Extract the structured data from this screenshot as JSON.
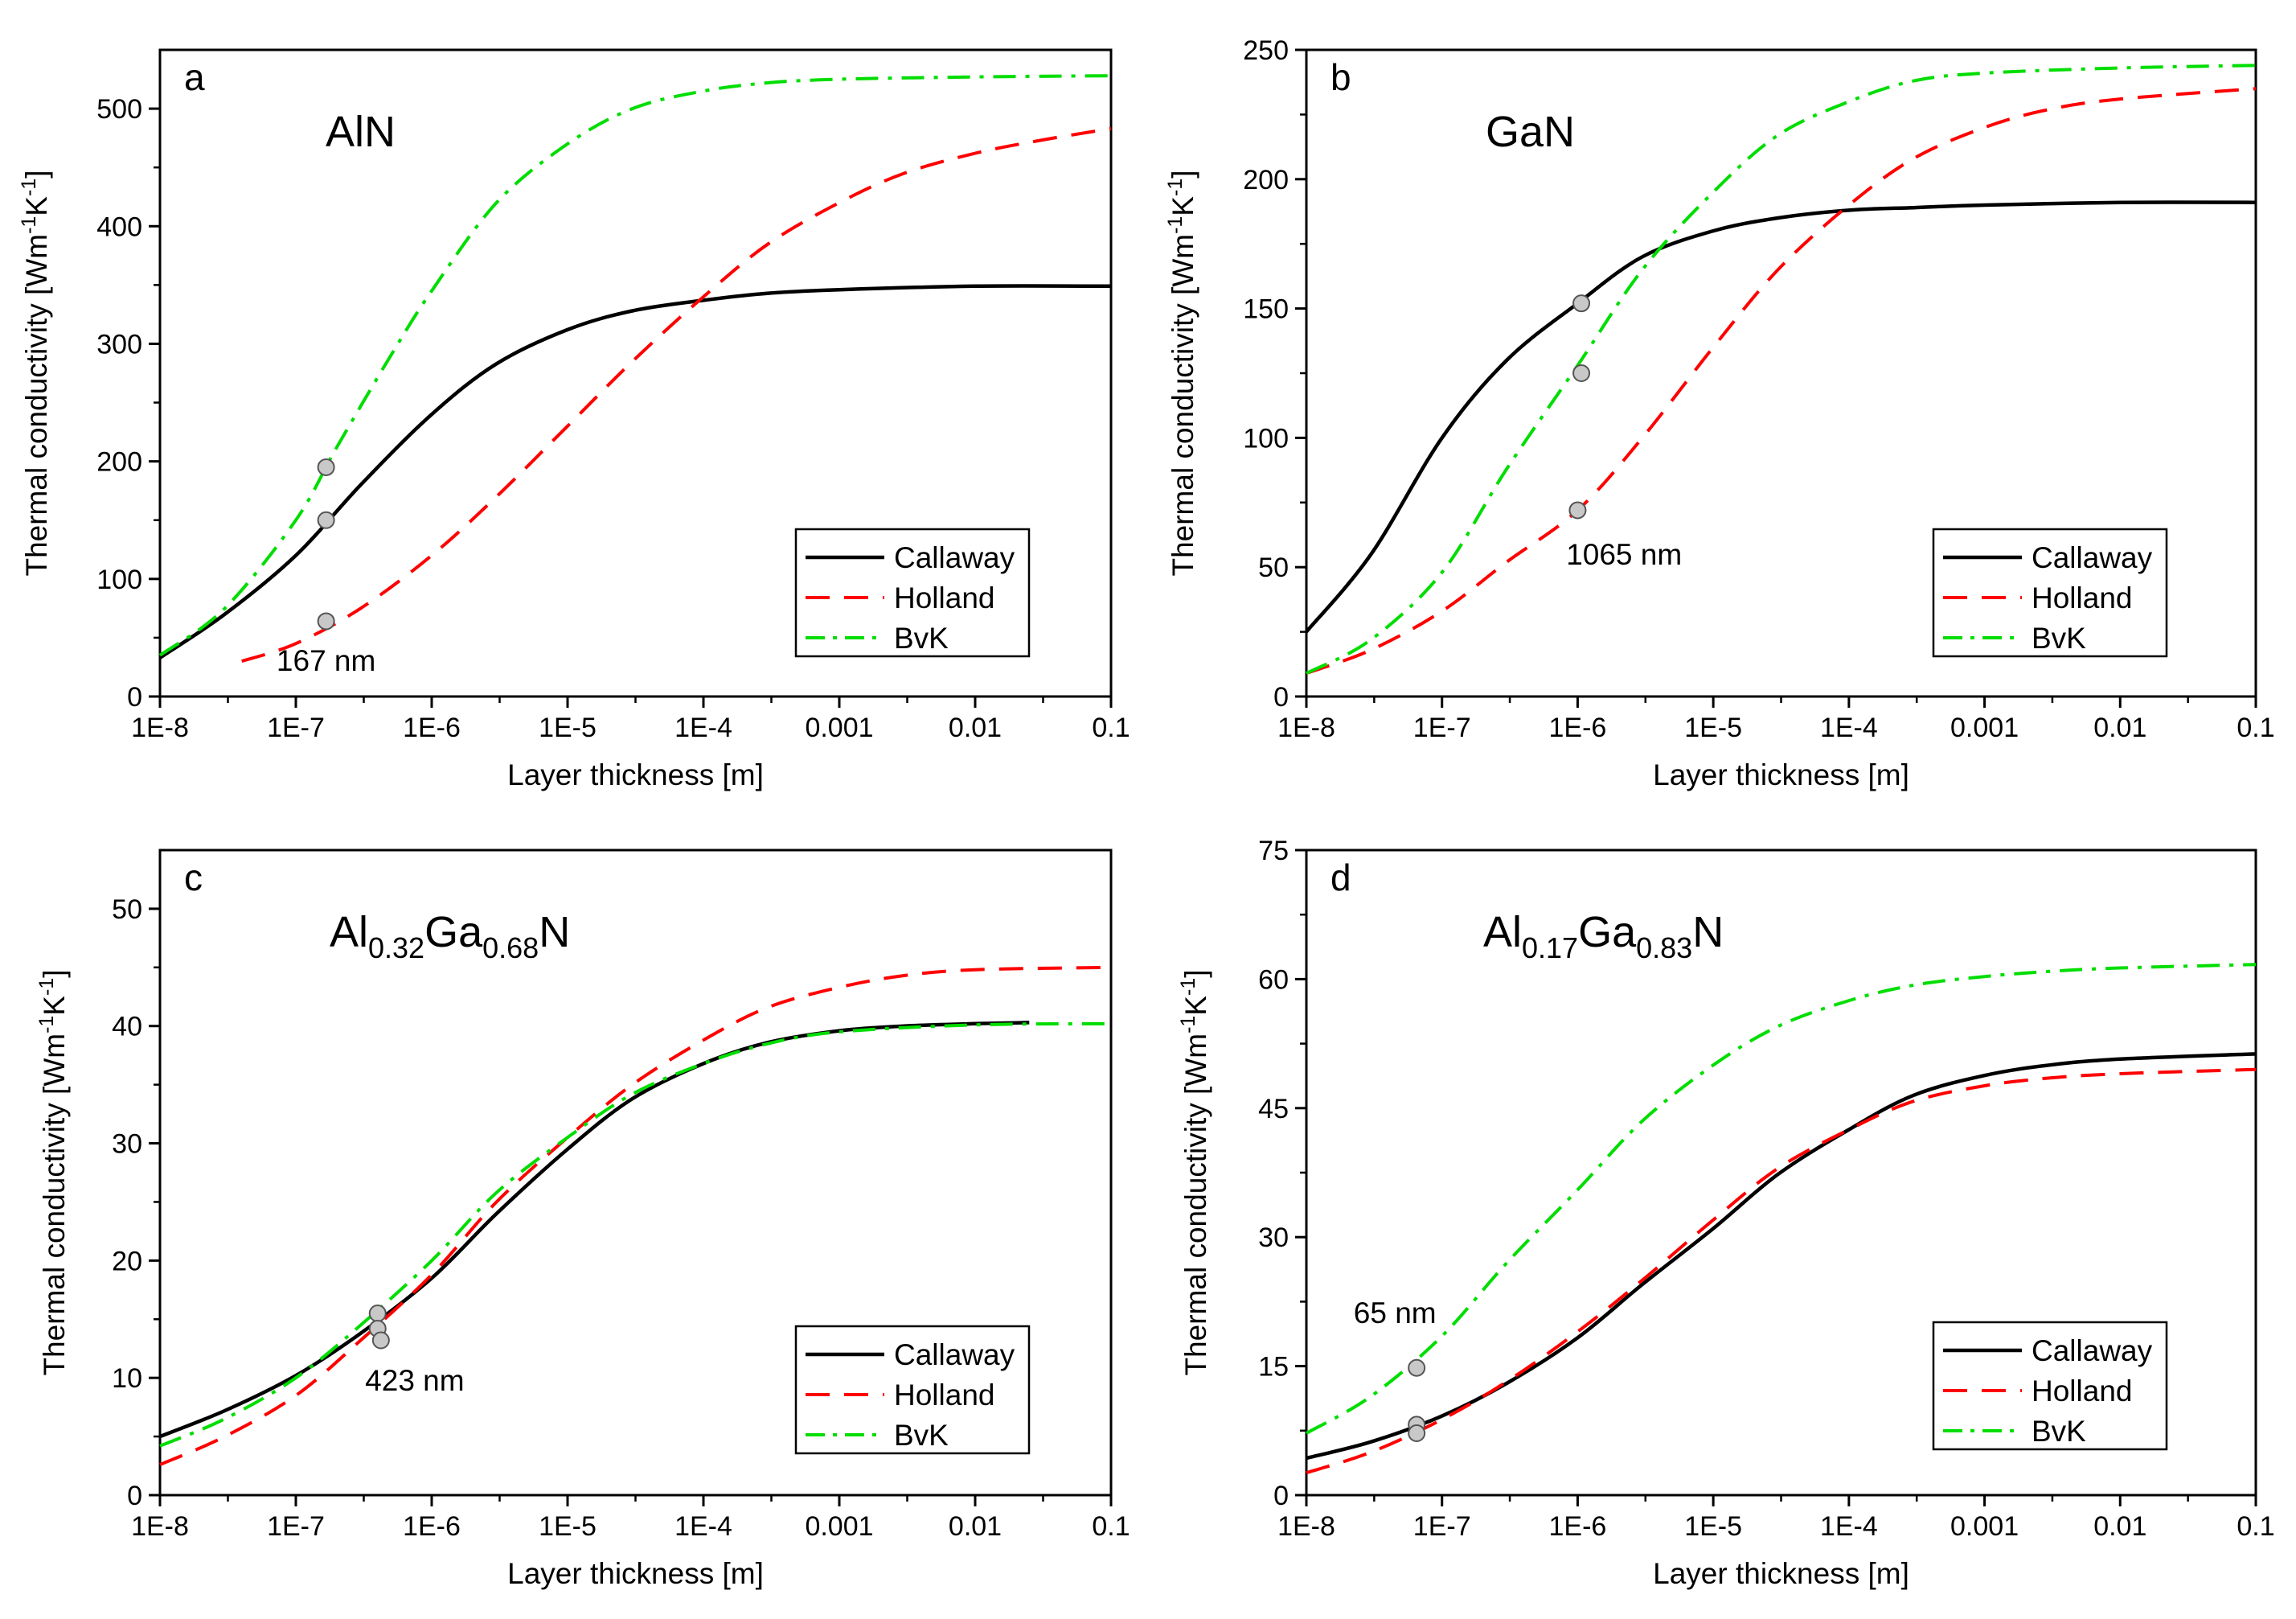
{
  "figure": {
    "series_styles": [
      {
        "name": "Callaway",
        "color": "#000000",
        "dash": "solid"
      },
      {
        "name": "Holland",
        "color": "#ff0000",
        "dash": "dash"
      },
      {
        "name": "BvK",
        "color": "#00dd00",
        "dash": "dashdot"
      }
    ],
    "marker_color": "#c8c8c8"
  },
  "chart_data": [
    {
      "type": "line",
      "panel": "a",
      "material": {
        "base": "AlN",
        "parts": [
          {
            "t": "AlN"
          }
        ]
      },
      "xlabel": "Layer thickness [m]",
      "ylabel": {
        "pre": "Thermal conductivity [Wm",
        "sup1": "-1",
        "mid": "K",
        "sup2": "-1",
        "post": "]"
      },
      "xscale": "log",
      "xlim": [
        1e-08,
        0.1
      ],
      "ylim": [
        0,
        550
      ],
      "xticks": [
        1e-08,
        1e-07,
        1e-06,
        1e-05,
        0.0001,
        0.001,
        0.01,
        0.1
      ],
      "xtick_labels": [
        "1E-8",
        "1E-7",
        "1E-6",
        "1E-5",
        "1E-4",
        "0.001",
        "0.01",
        "0.1"
      ],
      "yticks": [
        0,
        100,
        200,
        300,
        400,
        500
      ],
      "ytick_labels": [
        "0",
        "100",
        "200",
        "300",
        "400",
        "500"
      ],
      "legend": {
        "position": "bottom-right",
        "entries": [
          "Callaway",
          "Holland",
          "BvK"
        ]
      },
      "series": [
        {
          "name": "Callaway",
          "x": [
            1e-08,
            3e-08,
            1e-07,
            3e-07,
            1e-06,
            3e-06,
            1e-05,
            3e-05,
            0.0001,
            0.0003,
            0.001,
            0.01,
            0.1
          ],
          "y": [
            33,
            70,
            120,
            180,
            240,
            283,
            312,
            328,
            337,
            343,
            346,
            349,
            349
          ]
        },
        {
          "name": "Holland",
          "x": [
            4e-08,
            1e-07,
            3e-07,
            1e-06,
            3e-06,
            1e-05,
            3e-05,
            0.0001,
            0.0003,
            0.001,
            0.003,
            0.01,
            0.03,
            0.1
          ],
          "y": [
            30,
            45,
            75,
            120,
            170,
            230,
            285,
            340,
            385,
            420,
            445,
            462,
            473,
            483
          ]
        },
        {
          "name": "BvK",
          "x": [
            1e-08,
            3e-08,
            1e-07,
            2e-07,
            5e-07,
            1e-06,
            3e-06,
            1e-05,
            3e-05,
            0.0001,
            0.0003,
            0.001,
            0.01,
            0.1
          ],
          "y": [
            35,
            75,
            150,
            212,
            290,
            345,
            420,
            470,
            500,
            515,
            522,
            525,
            527,
            528
          ]
        }
      ],
      "markers": [
        {
          "x": 1.67e-07,
          "y": 195
        },
        {
          "x": 1.67e-07,
          "y": 150
        },
        {
          "x": 1.67e-07,
          "y": 64
        }
      ],
      "annotation": {
        "text": "167 nm",
        "x": 1.67e-07,
        "y": 22
      }
    },
    {
      "type": "line",
      "panel": "b",
      "material": {
        "base": "GaN",
        "parts": [
          {
            "t": "GaN"
          }
        ]
      },
      "xlabel": "Layer thickness [m]",
      "ylabel": {
        "pre": "Thermal conductivity [Wm",
        "sup1": "-1",
        "mid": "K",
        "sup2": "-1",
        "post": "]"
      },
      "xscale": "log",
      "xlim": [
        1e-08,
        0.1
      ],
      "ylim": [
        0,
        250
      ],
      "xticks": [
        1e-08,
        1e-07,
        1e-06,
        1e-05,
        0.0001,
        0.001,
        0.01,
        0.1
      ],
      "xtick_labels": [
        "1E-8",
        "1E-7",
        "1E-6",
        "1E-5",
        "1E-4",
        "0.001",
        "0.01",
        "0.1"
      ],
      "yticks": [
        0,
        50,
        100,
        150,
        200,
        250
      ],
      "ytick_labels": [
        "0",
        "50",
        "100",
        "150",
        "200",
        "250"
      ],
      "legend": {
        "position": "bottom-right",
        "entries": [
          "Callaway",
          "Holland",
          "BvK"
        ]
      },
      "series": [
        {
          "name": "Callaway",
          "x": [
            1e-08,
            3e-08,
            1e-07,
            3e-07,
            1e-06,
            3e-06,
            1e-05,
            3e-05,
            0.0001,
            0.0003,
            0.001,
            0.01,
            0.1
          ],
          "y": [
            25,
            55,
            100,
            130,
            152,
            170,
            180,
            185,
            188,
            189,
            190,
            191,
            191
          ]
        },
        {
          "name": "Holland",
          "x": [
            1e-08,
            3e-08,
            1e-07,
            3e-07,
            1e-06,
            3e-06,
            1e-05,
            3e-05,
            0.0001,
            0.0003,
            0.001,
            0.003,
            0.01,
            0.1
          ],
          "y": [
            9,
            18,
            33,
            52,
            72,
            100,
            135,
            165,
            190,
            208,
            220,
            227,
            231,
            235
          ]
        },
        {
          "name": "BvK",
          "x": [
            1e-08,
            3e-08,
            1e-07,
            3e-07,
            1e-06,
            3e-06,
            1e-05,
            3e-05,
            0.0001,
            0.0003,
            0.001,
            0.01,
            0.1
          ],
          "y": [
            9,
            22,
            48,
            88,
            128,
            165,
            195,
            217,
            230,
            238,
            241,
            243,
            244
          ]
        }
      ],
      "markers": [
        {
          "x": 1.065e-06,
          "y": 152
        },
        {
          "x": 1.065e-06,
          "y": 125
        },
        {
          "x": 1e-06,
          "y": 72
        }
      ],
      "annotation": {
        "text": "1065 nm",
        "x": 2.2e-06,
        "y": 51
      }
    },
    {
      "type": "line",
      "panel": "c",
      "material": {
        "base": "Al0.32Ga0.68N",
        "parts": [
          {
            "t": "Al"
          },
          {
            "t": "0.32",
            "sub": true
          },
          {
            "t": "Ga"
          },
          {
            "t": "0.68",
            "sub": true
          },
          {
            "t": "N"
          }
        ]
      },
      "xlabel": "Layer thickness [m]",
      "ylabel": {
        "pre": "Thermal conductivity [Wm",
        "sup1": "-1",
        "mid": "K",
        "sup2": "-1",
        "post": "]"
      },
      "xscale": "log",
      "xlim": [
        1e-08,
        0.1
      ],
      "ylim": [
        0,
        55
      ],
      "xticks": [
        1e-08,
        1e-07,
        1e-06,
        1e-05,
        0.0001,
        0.001,
        0.01,
        0.1
      ],
      "xtick_labels": [
        "1E-8",
        "1E-7",
        "1E-6",
        "1E-5",
        "1E-4",
        "0.001",
        "0.01",
        "0.1"
      ],
      "yticks": [
        0,
        10,
        20,
        30,
        40,
        50
      ],
      "ytick_labels": [
        "0",
        "10",
        "20",
        "30",
        "40",
        "50"
      ],
      "legend": {
        "position": "bottom-right",
        "entries": [
          "Callaway",
          "Holland",
          "BvK"
        ]
      },
      "series": [
        {
          "name": "Callaway",
          "x": [
            1e-08,
            3e-08,
            1e-07,
            3e-07,
            1e-06,
            3e-06,
            1e-05,
            3e-05,
            0.0001,
            0.0003,
            0.001,
            0.003,
            0.01,
            0.025
          ],
          "y": [
            5,
            7.2,
            10.2,
            13.8,
            18.5,
            24,
            29.5,
            33.8,
            36.8,
            38.6,
            39.6,
            40,
            40.2,
            40.3
          ]
        },
        {
          "name": "Holland",
          "x": [
            1e-08,
            3e-08,
            1e-07,
            3e-07,
            1e-06,
            3e-06,
            1e-05,
            3e-05,
            0.0001,
            0.0003,
            0.001,
            0.003,
            0.01,
            0.1
          ],
          "y": [
            2.6,
            5,
            8.5,
            13.2,
            18.8,
            25,
            30.5,
            35,
            38.8,
            41.6,
            43.3,
            44.3,
            44.8,
            45
          ]
        },
        {
          "name": "BvK",
          "x": [
            1e-08,
            3e-08,
            1e-07,
            3e-07,
            1e-06,
            3e-06,
            1e-05,
            3e-05,
            0.0001,
            0.0003,
            0.001,
            0.01,
            0.1
          ],
          "y": [
            4.2,
            6.5,
            10,
            14.5,
            20,
            25.8,
            30.5,
            34.2,
            36.8,
            38.5,
            39.5,
            40.1,
            40.2
          ]
        }
      ],
      "markers": [
        {
          "x": 4e-07,
          "y": 15.5
        },
        {
          "x": 4e-07,
          "y": 14.2
        },
        {
          "x": 4.23e-07,
          "y": 13.2
        }
      ],
      "annotation": {
        "text": "423 nm",
        "x": 7.5e-07,
        "y": 8.9
      }
    },
    {
      "type": "line",
      "panel": "d",
      "material": {
        "base": "Al0.17Ga0.83N",
        "parts": [
          {
            "t": "Al"
          },
          {
            "t": "0.17",
            "sub": true
          },
          {
            "t": "Ga"
          },
          {
            "t": "0.83",
            "sub": true
          },
          {
            "t": "N"
          }
        ]
      },
      "xlabel": "Layer thickness [m]",
      "ylabel": {
        "pre": "Thermal conductivity [Wm",
        "sup1": "-1",
        "mid": "K",
        "sup2": "-1",
        "post": "]"
      },
      "xscale": "log",
      "xlim": [
        1e-08,
        0.1
      ],
      "ylim": [
        0,
        75
      ],
      "xticks": [
        1e-08,
        1e-07,
        1e-06,
        1e-05,
        0.0001,
        0.001,
        0.01,
        0.1
      ],
      "xtick_labels": [
        "1E-8",
        "1E-7",
        "1E-6",
        "1E-5",
        "1E-4",
        "0.001",
        "0.01",
        "0.1"
      ],
      "yticks": [
        0,
        15,
        30,
        45,
        60,
        75
      ],
      "ytick_labels": [
        "0",
        "15",
        "30",
        "45",
        "60",
        "75"
      ],
      "legend": {
        "position": "bottom-right",
        "entries": [
          "Callaway",
          "Holland",
          "BvK"
        ]
      },
      "series": [
        {
          "name": "Callaway",
          "x": [
            1e-08,
            3e-08,
            1e-07,
            3e-07,
            1e-06,
            3e-06,
            1e-05,
            3e-05,
            0.0001,
            0.0003,
            0.001,
            0.003,
            0.01,
            0.1
          ],
          "y": [
            4.3,
            6.2,
            9.2,
            13,
            18.3,
            24.5,
            31,
            37.3,
            42.5,
            46.5,
            48.8,
            50,
            50.7,
            51.3
          ]
        },
        {
          "name": "Holland",
          "x": [
            1e-08,
            3e-08,
            1e-07,
            3e-07,
            1e-06,
            3e-06,
            1e-05,
            3e-05,
            0.0001,
            0.0003,
            0.001,
            0.003,
            0.01,
            0.1
          ],
          "y": [
            2.6,
            5,
            8.8,
            13.2,
            19,
            25,
            32,
            38,
            42.5,
            45.8,
            47.6,
            48.5,
            49,
            49.5
          ]
        },
        {
          "name": "BvK",
          "x": [
            1e-08,
            3e-08,
            1e-07,
            3e-07,
            1e-06,
            3e-06,
            1e-05,
            3e-05,
            0.0001,
            0.0003,
            0.001,
            0.003,
            0.01,
            0.1
          ],
          "y": [
            7.2,
            11.5,
            18.5,
            27,
            35.5,
            43.5,
            50,
            54.5,
            57.5,
            59.3,
            60.3,
            60.9,
            61.3,
            61.7
          ]
        }
      ],
      "markers": [
        {
          "x": 6.5e-08,
          "y": 14.8
        },
        {
          "x": 6.5e-08,
          "y": 8.2
        },
        {
          "x": 6.5e-08,
          "y": 7.2
        }
      ],
      "annotation": {
        "text": "65 nm",
        "x": 4.5e-08,
        "y": 20
      }
    }
  ]
}
